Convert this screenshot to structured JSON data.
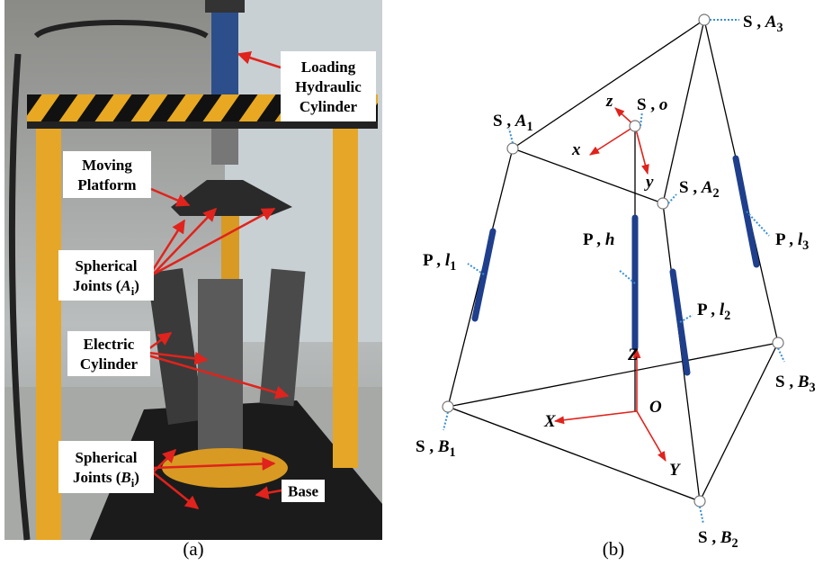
{
  "panel_a": {
    "caption": "(a)",
    "labels": [
      {
        "lines": [
          {
            "text": "Loading"
          },
          {
            "text": "Hydraulic"
          },
          {
            "text": "Cylinder"
          }
        ]
      },
      {
        "lines": [
          {
            "text": "Moving"
          },
          {
            "text": "Platform"
          }
        ]
      },
      {
        "lines": [
          {
            "text": "Spherical"
          },
          {
            "prefix": "Joints (",
            "var": "A",
            "sub": "i",
            "suffix": ")"
          }
        ]
      },
      {
        "lines": [
          {
            "text": "Electric"
          },
          {
            "text": "Cylinder"
          }
        ]
      },
      {
        "lines": [
          {
            "text": "Spherical"
          },
          {
            "prefix": "Joints (",
            "var": "B",
            "sub": "i",
            "suffix": ")"
          }
        ]
      },
      {
        "lines": [
          {
            "text": "Base"
          }
        ]
      }
    ]
  },
  "panel_b": {
    "caption": "(b)",
    "joints": [
      {
        "prefix": "S , ",
        "var": "A",
        "sub": "3"
      },
      {
        "prefix": "S , ",
        "var": "A",
        "sub": "1"
      },
      {
        "prefix": "S , ",
        "var": "o"
      },
      {
        "prefix": "S , ",
        "var": "A",
        "sub": "2"
      },
      {
        "prefix": "S , ",
        "var": "B",
        "sub": "3"
      },
      {
        "prefix": "S , ",
        "var": "B",
        "sub": "1"
      },
      {
        "prefix": "S , ",
        "var": "B",
        "sub": "2"
      }
    ],
    "prismatic": [
      {
        "prefix": "P , ",
        "var": "l",
        "sub": "1"
      },
      {
        "prefix": "P , ",
        "var": "h"
      },
      {
        "prefix": "P , ",
        "var": "l",
        "sub": "2"
      },
      {
        "prefix": "P , ",
        "var": "l",
        "sub": "3"
      }
    ],
    "axes": [
      "z",
      "x",
      "y",
      "Z",
      "X",
      "Y",
      "O"
    ]
  }
}
